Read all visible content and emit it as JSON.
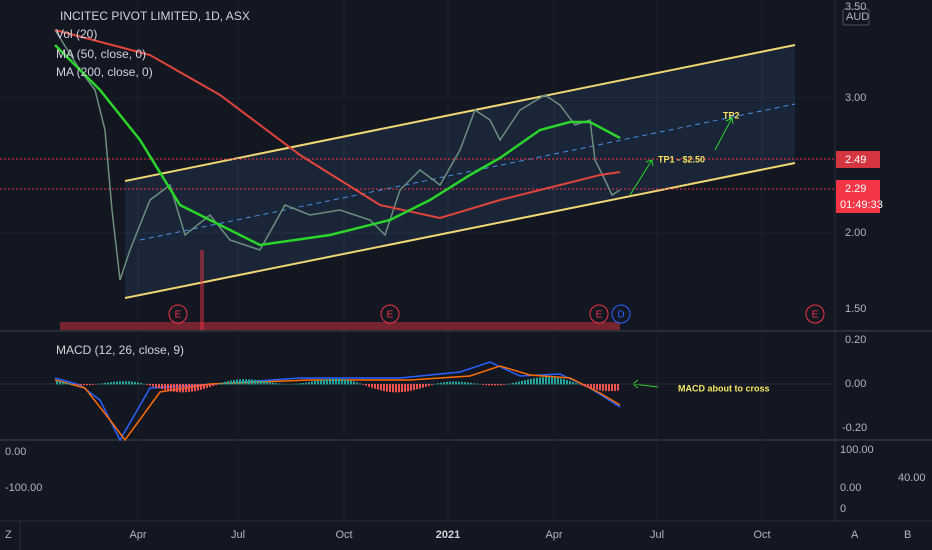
{
  "header": {
    "title": "INCITEC PIVOT LIMITED, 1D, ASX",
    "indicators": [
      "Vol (20)",
      "MA (50, close, 0)",
      "MA (200, close, 0)"
    ]
  },
  "price_axis": {
    "currency": "AUD",
    "labels": [
      "3.50",
      "3.00",
      "2.00",
      "1.50"
    ],
    "markers": [
      {
        "label": "2.49"
      },
      {
        "label": "2.29",
        "countdown": "01:49:33"
      }
    ]
  },
  "macd": {
    "title": "MACD (12, 26, close, 9)",
    "labels": [
      "0.20",
      "0.00",
      "-0.20"
    ]
  },
  "lower_pane": {
    "left_labels": [
      "0.00",
      "-100.00"
    ],
    "right_labels": [
      "100.00",
      "0.00",
      "0"
    ],
    "side_label": "40.00"
  },
  "time_axis": [
    "Apr",
    "Jul",
    "Oct",
    "2021",
    "Apr",
    "Jul",
    "Oct"
  ],
  "events": [
    "E",
    "E",
    "E",
    "D",
    "E"
  ],
  "annotations": [
    "TP1 - $2.50",
    "TP2",
    "MACD about to cross"
  ],
  "toolbar": [
    "Z",
    "A",
    "B"
  ]
}
